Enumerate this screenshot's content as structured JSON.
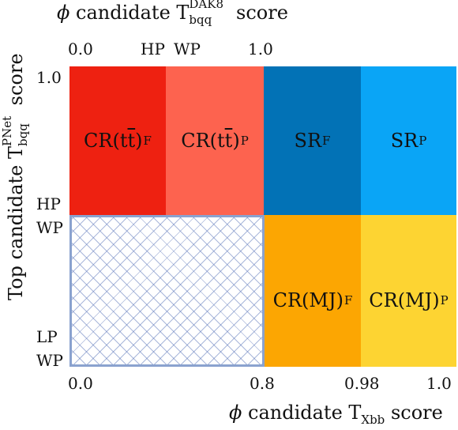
{
  "top_axis": {
    "title_phi": "ϕ",
    "title_pre": "candidate T",
    "title_sup": "DAK8",
    "title_sub": "bqq",
    "title_post": "score",
    "ticks": [
      "0.0",
      "HP",
      "WP",
      "1.0"
    ]
  },
  "left_axis": {
    "title_pre": "Top candidate T",
    "title_sup": "PNet",
    "title_sub": "bqq",
    "title_post": "score",
    "ticks": [
      "1.0",
      "HP",
      "WP",
      "LP",
      "WP"
    ]
  },
  "bottom_axis": {
    "title_phi": "ϕ",
    "title_pre": "candidate T",
    "title_sub": "Xbb",
    "title_post": "score",
    "ticks": [
      "0.0",
      "0.8",
      "0.98",
      "1.0"
    ]
  },
  "regions": [
    {
      "main": "CR(t",
      "bar": "t",
      "close": ")",
      "sub": "F",
      "color": "#ee2111"
    },
    {
      "main": "CR(t",
      "bar": "t",
      "close": ")",
      "sub": "P",
      "color": "#fd634f"
    },
    {
      "main": "SR",
      "sub": "F",
      "color": "#0272b6"
    },
    {
      "main": "SR",
      "sub": "P",
      "color": "#0aa5f6"
    },
    {
      "main": "CR(MJ)",
      "sub": "F",
      "color": "#fca602"
    },
    {
      "main": "CR(MJ)",
      "sub": "P",
      "color": "#fdd432"
    }
  ],
  "colors": {
    "hatch_border": "#8aa2cf"
  }
}
